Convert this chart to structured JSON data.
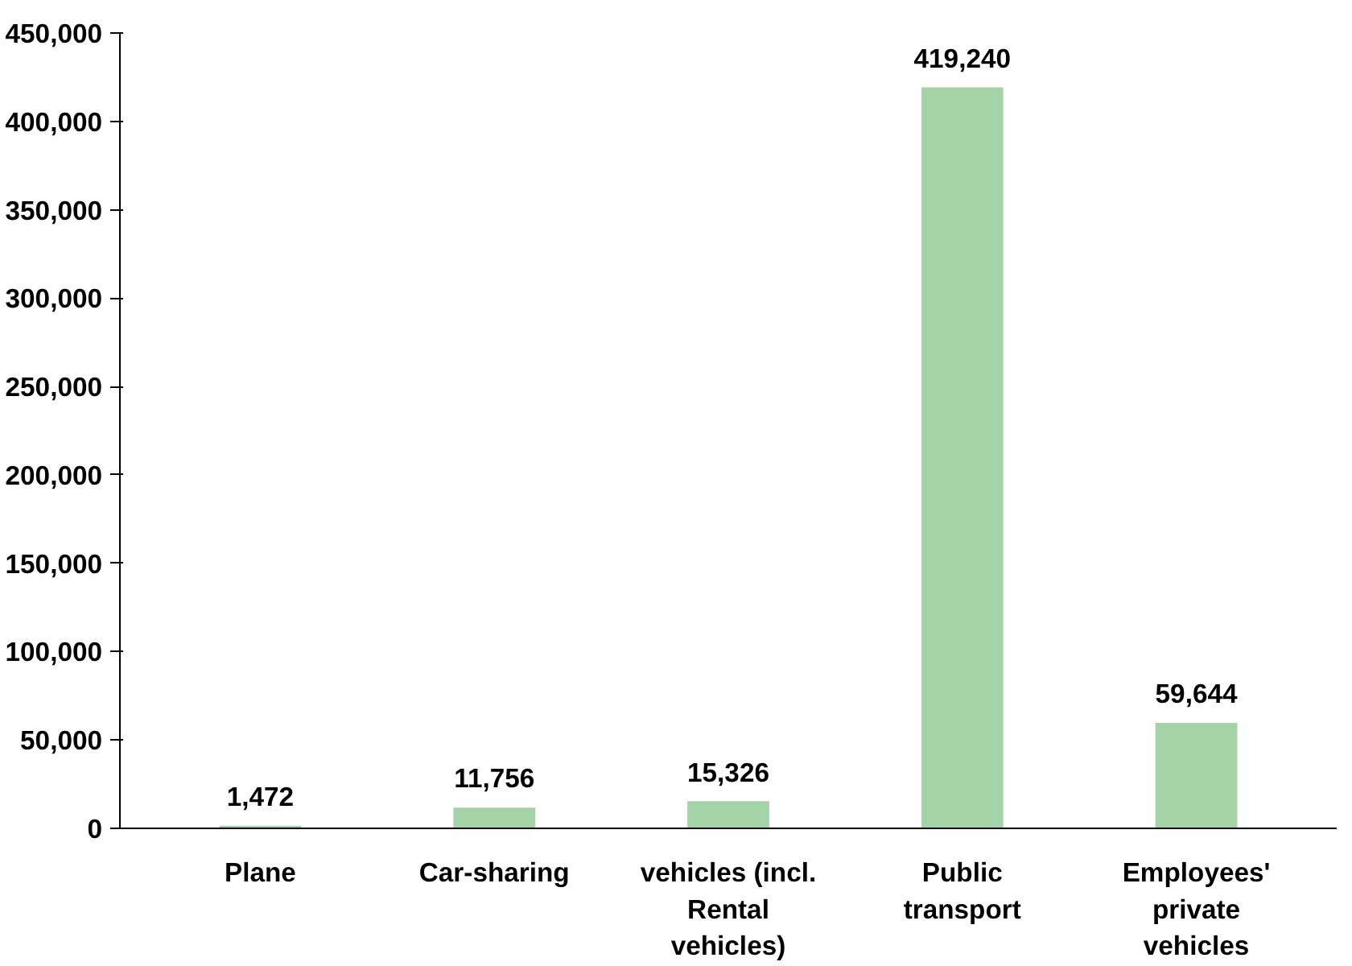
{
  "chart_data": {
    "type": "bar",
    "categories": [
      "Plane",
      "Car-sharing",
      "vehicles (incl. Rental vehicles)",
      "Public transport",
      "Employees' private vehicles"
    ],
    "values": [
      1472,
      11756,
      15326,
      419240,
      59644
    ],
    "color": "#a3d3a6",
    "ylim": [
      0,
      450000
    ],
    "yticks": [
      {
        "value": 0,
        "label": "0"
      },
      {
        "value": 50000,
        "label": "50,000"
      },
      {
        "value": 100000,
        "label": "100,000"
      },
      {
        "value": 150000,
        "label": "150,000"
      },
      {
        "value": 200000,
        "label": "200,000"
      },
      {
        "value": 250000,
        "label": "250,000"
      },
      {
        "value": 300000,
        "label": "300,000"
      },
      {
        "value": 350000,
        "label": "350,000"
      },
      {
        "value": 400000,
        "label": "400,000"
      },
      {
        "value": 450000,
        "label": "450,000"
      }
    ],
    "value_labels": [
      "1,472",
      "11,756",
      "15,326",
      "419,240",
      "59,644"
    ],
    "grid": false
  }
}
